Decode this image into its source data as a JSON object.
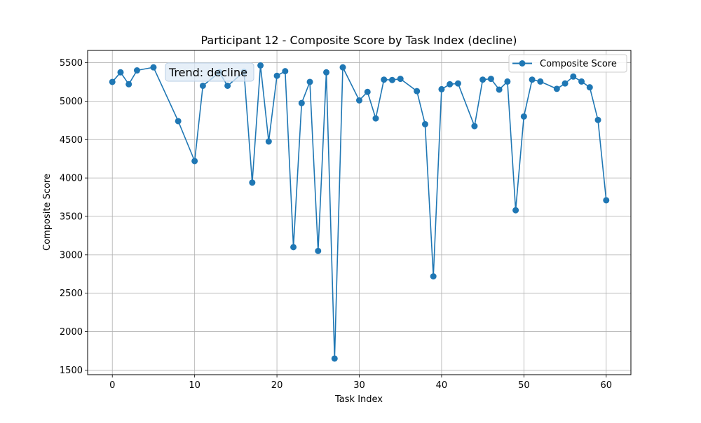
{
  "chart_data": {
    "type": "line",
    "title": "Participant 12 - Composite Score by Task Index (decline)",
    "xlabel": "Task Index",
    "ylabel": "Composite Score",
    "xlim": [
      -3,
      63
    ],
    "ylim": [
      1440,
      5660
    ],
    "xticks": [
      0,
      10,
      20,
      30,
      40,
      50,
      60
    ],
    "yticks": [
      1500,
      2000,
      2500,
      3000,
      3500,
      4000,
      4500,
      5000,
      5500
    ],
    "grid": true,
    "legend_position": "top-right",
    "annotation": "Trend: decline",
    "series": [
      {
        "name": "Composite Score",
        "color": "#1f77b4",
        "marker": "circle",
        "x": [
          0,
          1,
          2,
          3,
          5,
          8,
          10,
          11,
          13,
          14,
          16,
          17,
          18,
          19,
          20,
          21,
          22,
          23,
          24,
          25,
          26,
          27,
          28,
          30,
          31,
          32,
          33,
          34,
          35,
          37,
          38,
          39,
          40,
          41,
          42,
          44,
          45,
          46,
          47,
          48,
          49,
          50,
          51,
          52,
          54,
          55,
          56,
          57,
          58,
          59,
          60
        ],
        "y": [
          5250,
          5375,
          5220,
          5400,
          5440,
          4740,
          4220,
          5200,
          5375,
          5200,
          5380,
          3940,
          5465,
          4475,
          5330,
          5390,
          3100,
          4975,
          5250,
          3050,
          5375,
          1650,
          5440,
          5010,
          5120,
          4775,
          5280,
          5275,
          5290,
          5130,
          4700,
          2720,
          5155,
          5220,
          5230,
          4675,
          5280,
          5290,
          5150,
          5255,
          3580,
          4800,
          5280,
          5255,
          5160,
          5230,
          5320,
          5255,
          5180,
          4755,
          3710
        ]
      }
    ]
  }
}
